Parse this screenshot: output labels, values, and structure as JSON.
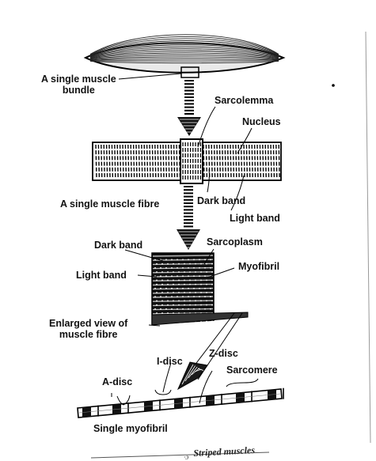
{
  "labels": {
    "single_muscle_bundle": "A single muscle\nbundle",
    "sarcolemma": "Sarcolemma",
    "nucleus": "Nucleus",
    "single_muscle_fibre": "A single muscle fibre",
    "dark_band_fibre": "Dark band",
    "light_band_fibre": "Light band",
    "dark_band_enlarged": "Dark band",
    "sarcoplasm": "Sarcoplasm",
    "myofibril": "Myofibril",
    "light_band_enlarged": "Light band",
    "enlarged_view": "Enlarged view of\nmuscle fibre",
    "i_disc": "I-disc",
    "z_disc": "Z-disc",
    "a_disc": "A-disc",
    "sarcomere": "Sarcomere",
    "single_myofibril": "Single myofibril"
  },
  "caption": {
    "partial_number": "·ɔ",
    "text": "Striped muscles"
  }
}
